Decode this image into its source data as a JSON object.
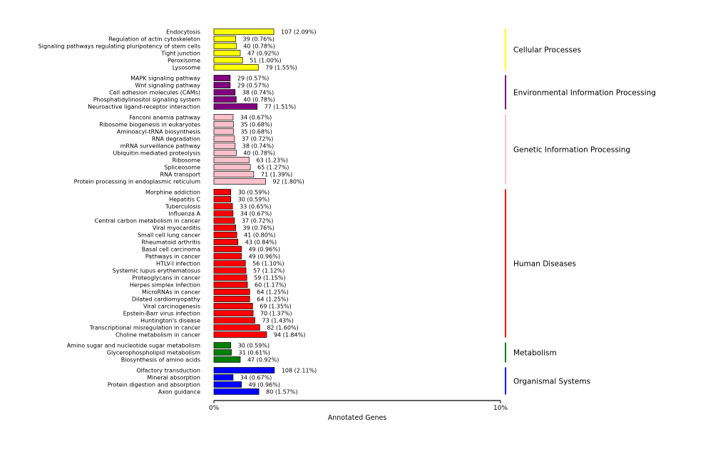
{
  "chart_data": {
    "type": "bar",
    "orientation": "horizontal",
    "xlabel": "Annotated Genes",
    "xlim": [
      0,
      10
    ],
    "x_ticks": [
      "0%",
      "10%"
    ],
    "grid": false,
    "groups": [
      {
        "name": "Cellular Processes",
        "color": "#ffff00",
        "items": [
          {
            "label": "Endocytosis",
            "value": 2.09,
            "text": "107 (2.09%)"
          },
          {
            "label": "Regulation of actin cytoskeleton",
            "value": 0.76,
            "text": "39 (0.76%)"
          },
          {
            "label": "Signaling pathways regulating pluripotency of stem cells",
            "value": 0.78,
            "text": "40 (0.78%)"
          },
          {
            "label": "Tight junction",
            "value": 0.92,
            "text": "47 (0.92%)"
          },
          {
            "label": "Peroxisome",
            "value": 1.0,
            "text": "51 (1.00%)"
          },
          {
            "label": "Lysosome",
            "value": 1.55,
            "text": "79 (1.55%)"
          }
        ]
      },
      {
        "name": "Environmental Information Processing",
        "color": "#800080",
        "items": [
          {
            "label": "MAPK signaling pathway",
            "value": 0.57,
            "text": "29 (0.57%)"
          },
          {
            "label": "Wnt signaling pathway",
            "value": 0.57,
            "text": "29 (0.57%)"
          },
          {
            "label": "Cell adhesion molecules (CAMs)",
            "value": 0.74,
            "text": "38 (0.74%)"
          },
          {
            "label": "Phosphatidylinositol signaling system",
            "value": 0.78,
            "text": "40 (0.78%)"
          },
          {
            "label": "Neuroactive ligand-receptor interaction",
            "value": 1.51,
            "text": "77 (1.51%)"
          }
        ]
      },
      {
        "name": "Genetic Information Processing",
        "color": "#ffc0cb",
        "items": [
          {
            "label": "Fanconi anemia pathway",
            "value": 0.67,
            "text": "34 (0.67%)"
          },
          {
            "label": "Ribosome biogenesis in eukaryotes",
            "value": 0.68,
            "text": "35 (0.68%)"
          },
          {
            "label": "Aminoacyl-tRNA biosynthesis",
            "value": 0.68,
            "text": "35 (0.68%)"
          },
          {
            "label": "RNA degradation",
            "value": 0.72,
            "text": "37 (0.72%)"
          },
          {
            "label": "mRNA surveillance pathway",
            "value": 0.74,
            "text": "38 (0.74%)"
          },
          {
            "label": "Ubiquitin mediated proteolysis",
            "value": 0.78,
            "text": "40 (0.78%)"
          },
          {
            "label": "Ribosome",
            "value": 1.23,
            "text": "63 (1.23%)"
          },
          {
            "label": "Spliceosome",
            "value": 1.27,
            "text": "65 (1.27%)"
          },
          {
            "label": "RNA transport",
            "value": 1.39,
            "text": "71 (1.39%)"
          },
          {
            "label": "Protein processing in endoplasmic reticulum",
            "value": 1.8,
            "text": "92 (1.80%)"
          }
        ]
      },
      {
        "name": "Human Diseases",
        "color": "#ff0000",
        "items": [
          {
            "label": "Morphine addiction",
            "value": 0.59,
            "text": "30 (0.59%)"
          },
          {
            "label": "Hepatitis C",
            "value": 0.59,
            "text": "30 (0.59%)"
          },
          {
            "label": "Tuberculosis",
            "value": 0.65,
            "text": "33 (0.65%)"
          },
          {
            "label": "Influenza A",
            "value": 0.67,
            "text": "34 (0.67%)"
          },
          {
            "label": "Central carbon metabolism in cancer",
            "value": 0.72,
            "text": "37 (0.72%)"
          },
          {
            "label": "Viral myocarditis",
            "value": 0.76,
            "text": "39 (0.76%)"
          },
          {
            "label": "Small cell lung cancer",
            "value": 0.8,
            "text": "41 (0.80%)"
          },
          {
            "label": "Rheumatoid arthritis",
            "value": 0.84,
            "text": "43 (0.84%)"
          },
          {
            "label": "Basal cell carcinoma",
            "value": 0.96,
            "text": "49 (0.96%)"
          },
          {
            "label": "Pathways in cancer",
            "value": 0.96,
            "text": "49 (0.96%)"
          },
          {
            "label": "HTLV-I infection",
            "value": 1.1,
            "text": "56 (1.10%)"
          },
          {
            "label": "Systemic lupus erythematosus",
            "value": 1.12,
            "text": "57 (1.12%)"
          },
          {
            "label": "Proteoglycans in cancer",
            "value": 1.15,
            "text": "59 (1.15%)"
          },
          {
            "label": "Herpes simplex infection",
            "value": 1.17,
            "text": "60 (1.17%)"
          },
          {
            "label": "MicroRNAs in cancer",
            "value": 1.25,
            "text": "64 (1.25%)"
          },
          {
            "label": "Dilated cardiomyopathy",
            "value": 1.25,
            "text": "64 (1.25%)"
          },
          {
            "label": "Viral carcinogenesis",
            "value": 1.35,
            "text": "69 (1.35%)"
          },
          {
            "label": "Epstein-Barr virus infection",
            "value": 1.37,
            "text": "70 (1.37%)"
          },
          {
            "label": "Huntington's disease",
            "value": 1.43,
            "text": "73 (1.43%)"
          },
          {
            "label": "Transcriptional misregulation in cancer",
            "value": 1.6,
            "text": "82 (1.60%)"
          },
          {
            "label": "Choline metabolism in cancer",
            "value": 1.84,
            "text": "94 (1.84%)"
          }
        ]
      },
      {
        "name": "Metabolism",
        "color": "#008000",
        "items": [
          {
            "label": "Amino sugar and nucleotide sugar metabolism",
            "value": 0.59,
            "text": "30 (0.59%)"
          },
          {
            "label": "Glycerophospholipid metabolism",
            "value": 0.61,
            "text": "31 (0.61%)"
          },
          {
            "label": "Biosynthesis of amino acids",
            "value": 0.92,
            "text": "47 (0.92%)"
          }
        ]
      },
      {
        "name": "Organismal Systems",
        "color": "#0000ff",
        "items": [
          {
            "label": "Olfactory transduction",
            "value": 2.11,
            "text": "108 (2.11%)"
          },
          {
            "label": "Mineral absorption",
            "value": 0.67,
            "text": "34 (0.67%)"
          },
          {
            "label": "Protein digestion and absorption",
            "value": 0.96,
            "text": "49 (0.96%)"
          },
          {
            "label": "Axon guidance",
            "value": 1.57,
            "text": "80 (1.57%)"
          }
        ]
      }
    ]
  }
}
